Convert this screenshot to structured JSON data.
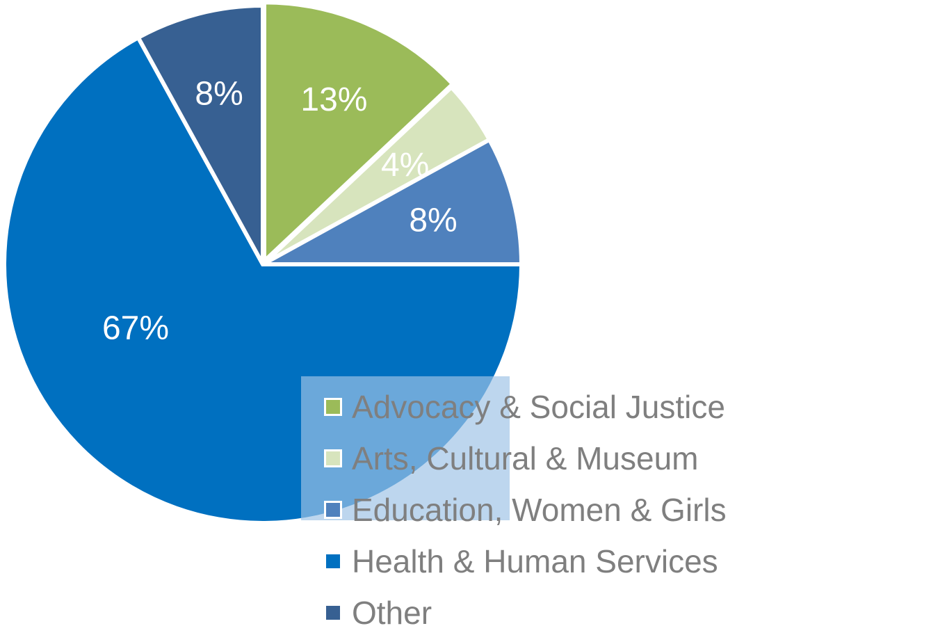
{
  "chart_data": {
    "type": "pie",
    "title": "",
    "start_angle_deg": 0,
    "direction": "clockwise",
    "label_color": "#ffffff",
    "legend_text_color": "#7f7f7f",
    "legend_box_color": "#9dc3e6",
    "legend_placement": "bottom-right",
    "slices": [
      {
        "name": "Advocacy & Social Justice",
        "value": 13,
        "label": "13%",
        "color": "#9bbb59"
      },
      {
        "name": "Arts, Cultural & Museum",
        "value": 4,
        "label": "4%",
        "color": "#d7e4bd"
      },
      {
        "name": "Education, Women & Girls",
        "value": 8,
        "label": "8%",
        "color": "#4f81bd"
      },
      {
        "name": "Health & Human Services",
        "value": 67,
        "label": "67%",
        "color": "#0070c0"
      },
      {
        "name": "Other",
        "value": 8,
        "label": "8%",
        "color": "#376092"
      }
    ]
  }
}
